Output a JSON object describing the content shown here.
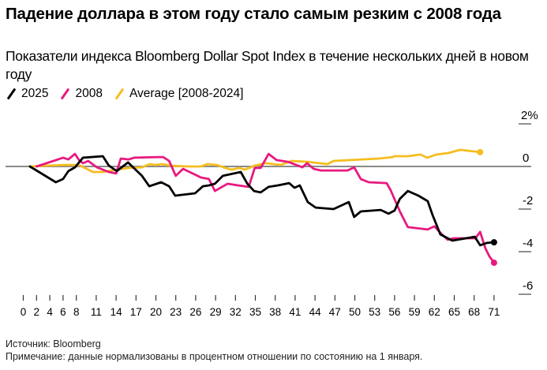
{
  "title": "Падение доллара в этом году стало самым резким с 2008 года",
  "subtitle": "Показатели индекса Bloomberg Dollar Spot Index в течение нескольких дней в новом году",
  "footer": {
    "source": "Источник: Bloomberg",
    "note": "Примечание: данные нормализованы в процентном отношении по состоянию на 1 января."
  },
  "chart_data": {
    "type": "line",
    "title": "Падение доллара в этом году стало самым резким с 2008 года",
    "xlabel": "",
    "ylabel": "%",
    "xlim": [
      0,
      71
    ],
    "ylim": [
      -6,
      2
    ],
    "grid": false,
    "legend_position": "top-left",
    "x_ticks": [
      0,
      2,
      4,
      6,
      8,
      11,
      14,
      17,
      20,
      23,
      26,
      29,
      32,
      35,
      38,
      41,
      44,
      47,
      50,
      53,
      56,
      59,
      62,
      65,
      68,
      71
    ],
    "y_ticks": [
      {
        "value": 2,
        "label": "2%"
      },
      {
        "value": 0,
        "label": "0"
      },
      {
        "value": -2,
        "label": "-2"
      },
      {
        "value": -4,
        "label": "-4"
      },
      {
        "value": -6,
        "label": "-6"
      }
    ],
    "series": [
      {
        "name": "2025",
        "color": "#000000",
        "end_marker": true,
        "points": [
          [
            1,
            0.0
          ],
          [
            4.9,
            -0.74
          ],
          [
            6,
            -0.59
          ],
          [
            6.8,
            -0.22
          ],
          [
            7.8,
            -0.04
          ],
          [
            9,
            0.41
          ],
          [
            12,
            0.48
          ],
          [
            12.9,
            0.04
          ],
          [
            14.1,
            -0.22
          ],
          [
            15.8,
            0.19
          ],
          [
            17.9,
            -0.44
          ],
          [
            19,
            -0.93
          ],
          [
            20.8,
            -0.74
          ],
          [
            22,
            -0.93
          ],
          [
            22.9,
            -1.37
          ],
          [
            25.9,
            -1.26
          ],
          [
            27.1,
            -0.93
          ],
          [
            28,
            -0.89
          ],
          [
            28.9,
            -0.81
          ],
          [
            30.1,
            -0.44
          ],
          [
            32.8,
            -0.26
          ],
          [
            33.8,
            -0.81
          ],
          [
            34.8,
            -1.15
          ],
          [
            35.8,
            -1.22
          ],
          [
            37,
            -0.96
          ],
          [
            38.4,
            -0.89
          ],
          [
            40.1,
            -0.78
          ],
          [
            40.9,
            -1.0
          ],
          [
            41.7,
            -0.89
          ],
          [
            42.9,
            -1.67
          ],
          [
            44.1,
            -1.93
          ],
          [
            46.8,
            -2.0
          ],
          [
            49.1,
            -1.67
          ],
          [
            49.9,
            -2.37
          ],
          [
            50.9,
            -2.11
          ],
          [
            53.9,
            -2.04
          ],
          [
            55.1,
            -2.22
          ],
          [
            56,
            -2.07
          ],
          [
            56.8,
            -1.52
          ],
          [
            58,
            -1.15
          ],
          [
            59.6,
            -1.37
          ],
          [
            61,
            -1.63
          ],
          [
            61.7,
            -2.26
          ],
          [
            62.9,
            -3.19
          ],
          [
            64.7,
            -3.48
          ],
          [
            68.1,
            -3.3
          ],
          [
            68.9,
            -3.7
          ],
          [
            69.9,
            -3.59
          ],
          [
            71,
            -3.56
          ]
        ]
      },
      {
        "name": "2008",
        "color": "#e8197f",
        "end_marker": true,
        "points": [
          [
            2,
            0.0
          ],
          [
            6,
            0.41
          ],
          [
            6.8,
            0.33
          ],
          [
            7.8,
            0.59
          ],
          [
            8.4,
            0.3
          ],
          [
            9,
            0.15
          ],
          [
            9.8,
            0.26
          ],
          [
            11.1,
            -0.04
          ],
          [
            12.9,
            -0.26
          ],
          [
            14,
            -0.33
          ],
          [
            14.7,
            0.37
          ],
          [
            15.9,
            0.33
          ],
          [
            16.7,
            0.41
          ],
          [
            20.3,
            0.44
          ],
          [
            21.1,
            0.44
          ],
          [
            22,
            0.26
          ],
          [
            23,
            -0.44
          ],
          [
            24.1,
            -0.11
          ],
          [
            26.8,
            -0.52
          ],
          [
            28,
            -0.59
          ],
          [
            28.9,
            -1.15
          ],
          [
            30.8,
            -0.81
          ],
          [
            32.4,
            -0.89
          ],
          [
            34,
            -0.96
          ],
          [
            34.9,
            -0.07
          ],
          [
            35.8,
            -0.07
          ],
          [
            37,
            0.59
          ],
          [
            38.2,
            0.3
          ],
          [
            39.9,
            0.22
          ],
          [
            40.5,
            0.15
          ],
          [
            42.1,
            -0.04
          ],
          [
            42.8,
            0.15
          ],
          [
            43.8,
            -0.11
          ],
          [
            44.9,
            -0.19
          ],
          [
            48.9,
            -0.19
          ],
          [
            49.9,
            -0.04
          ],
          [
            50.9,
            -0.59
          ],
          [
            52.1,
            -0.74
          ],
          [
            54.8,
            -0.78
          ],
          [
            55.4,
            -1.11
          ],
          [
            56.8,
            -2.11
          ],
          [
            58,
            -2.85
          ],
          [
            61,
            -2.96
          ],
          [
            62,
            -2.81
          ],
          [
            62.9,
            -3.11
          ],
          [
            64,
            -3.44
          ],
          [
            64.9,
            -3.37
          ],
          [
            68.2,
            -3.37
          ],
          [
            68.9,
            -3.07
          ],
          [
            69.7,
            -3.85
          ],
          [
            70.3,
            -4.22
          ],
          [
            71,
            -4.52
          ]
        ]
      },
      {
        "name": "Average [2008-2024]",
        "color": "#f5bd1f",
        "end_marker": true,
        "points": [
          [
            1,
            0.0
          ],
          [
            6,
            0.07
          ],
          [
            8.4,
            0.07
          ],
          [
            10.5,
            -0.26
          ],
          [
            12,
            -0.26
          ],
          [
            14,
            -0.15
          ],
          [
            15.9,
            -0.07
          ],
          [
            17.9,
            -0.04
          ],
          [
            19.1,
            0.11
          ],
          [
            19.9,
            0.07
          ],
          [
            20.9,
            0.11
          ],
          [
            22.1,
            0.04
          ],
          [
            24.7,
            0.0
          ],
          [
            26.8,
            0.0
          ],
          [
            27.8,
            0.11
          ],
          [
            29.2,
            0.07
          ],
          [
            30.2,
            -0.04
          ],
          [
            31.4,
            -0.15
          ],
          [
            32.6,
            -0.07
          ],
          [
            33.4,
            -0.15
          ],
          [
            34.9,
            0.04
          ],
          [
            36.6,
            0.15
          ],
          [
            38.8,
            0.07
          ],
          [
            40.5,
            0.26
          ],
          [
            42.9,
            0.22
          ],
          [
            45.9,
            0.11
          ],
          [
            46.8,
            0.26
          ],
          [
            53.6,
            0.37
          ],
          [
            55.7,
            0.44
          ],
          [
            56,
            0.48
          ],
          [
            58,
            0.48
          ],
          [
            59.9,
            0.56
          ],
          [
            60.9,
            0.41
          ],
          [
            62.3,
            0.56
          ],
          [
            64.1,
            0.63
          ],
          [
            65.9,
            0.78
          ],
          [
            67,
            0.74
          ],
          [
            68.9,
            0.67
          ]
        ]
      }
    ]
  }
}
